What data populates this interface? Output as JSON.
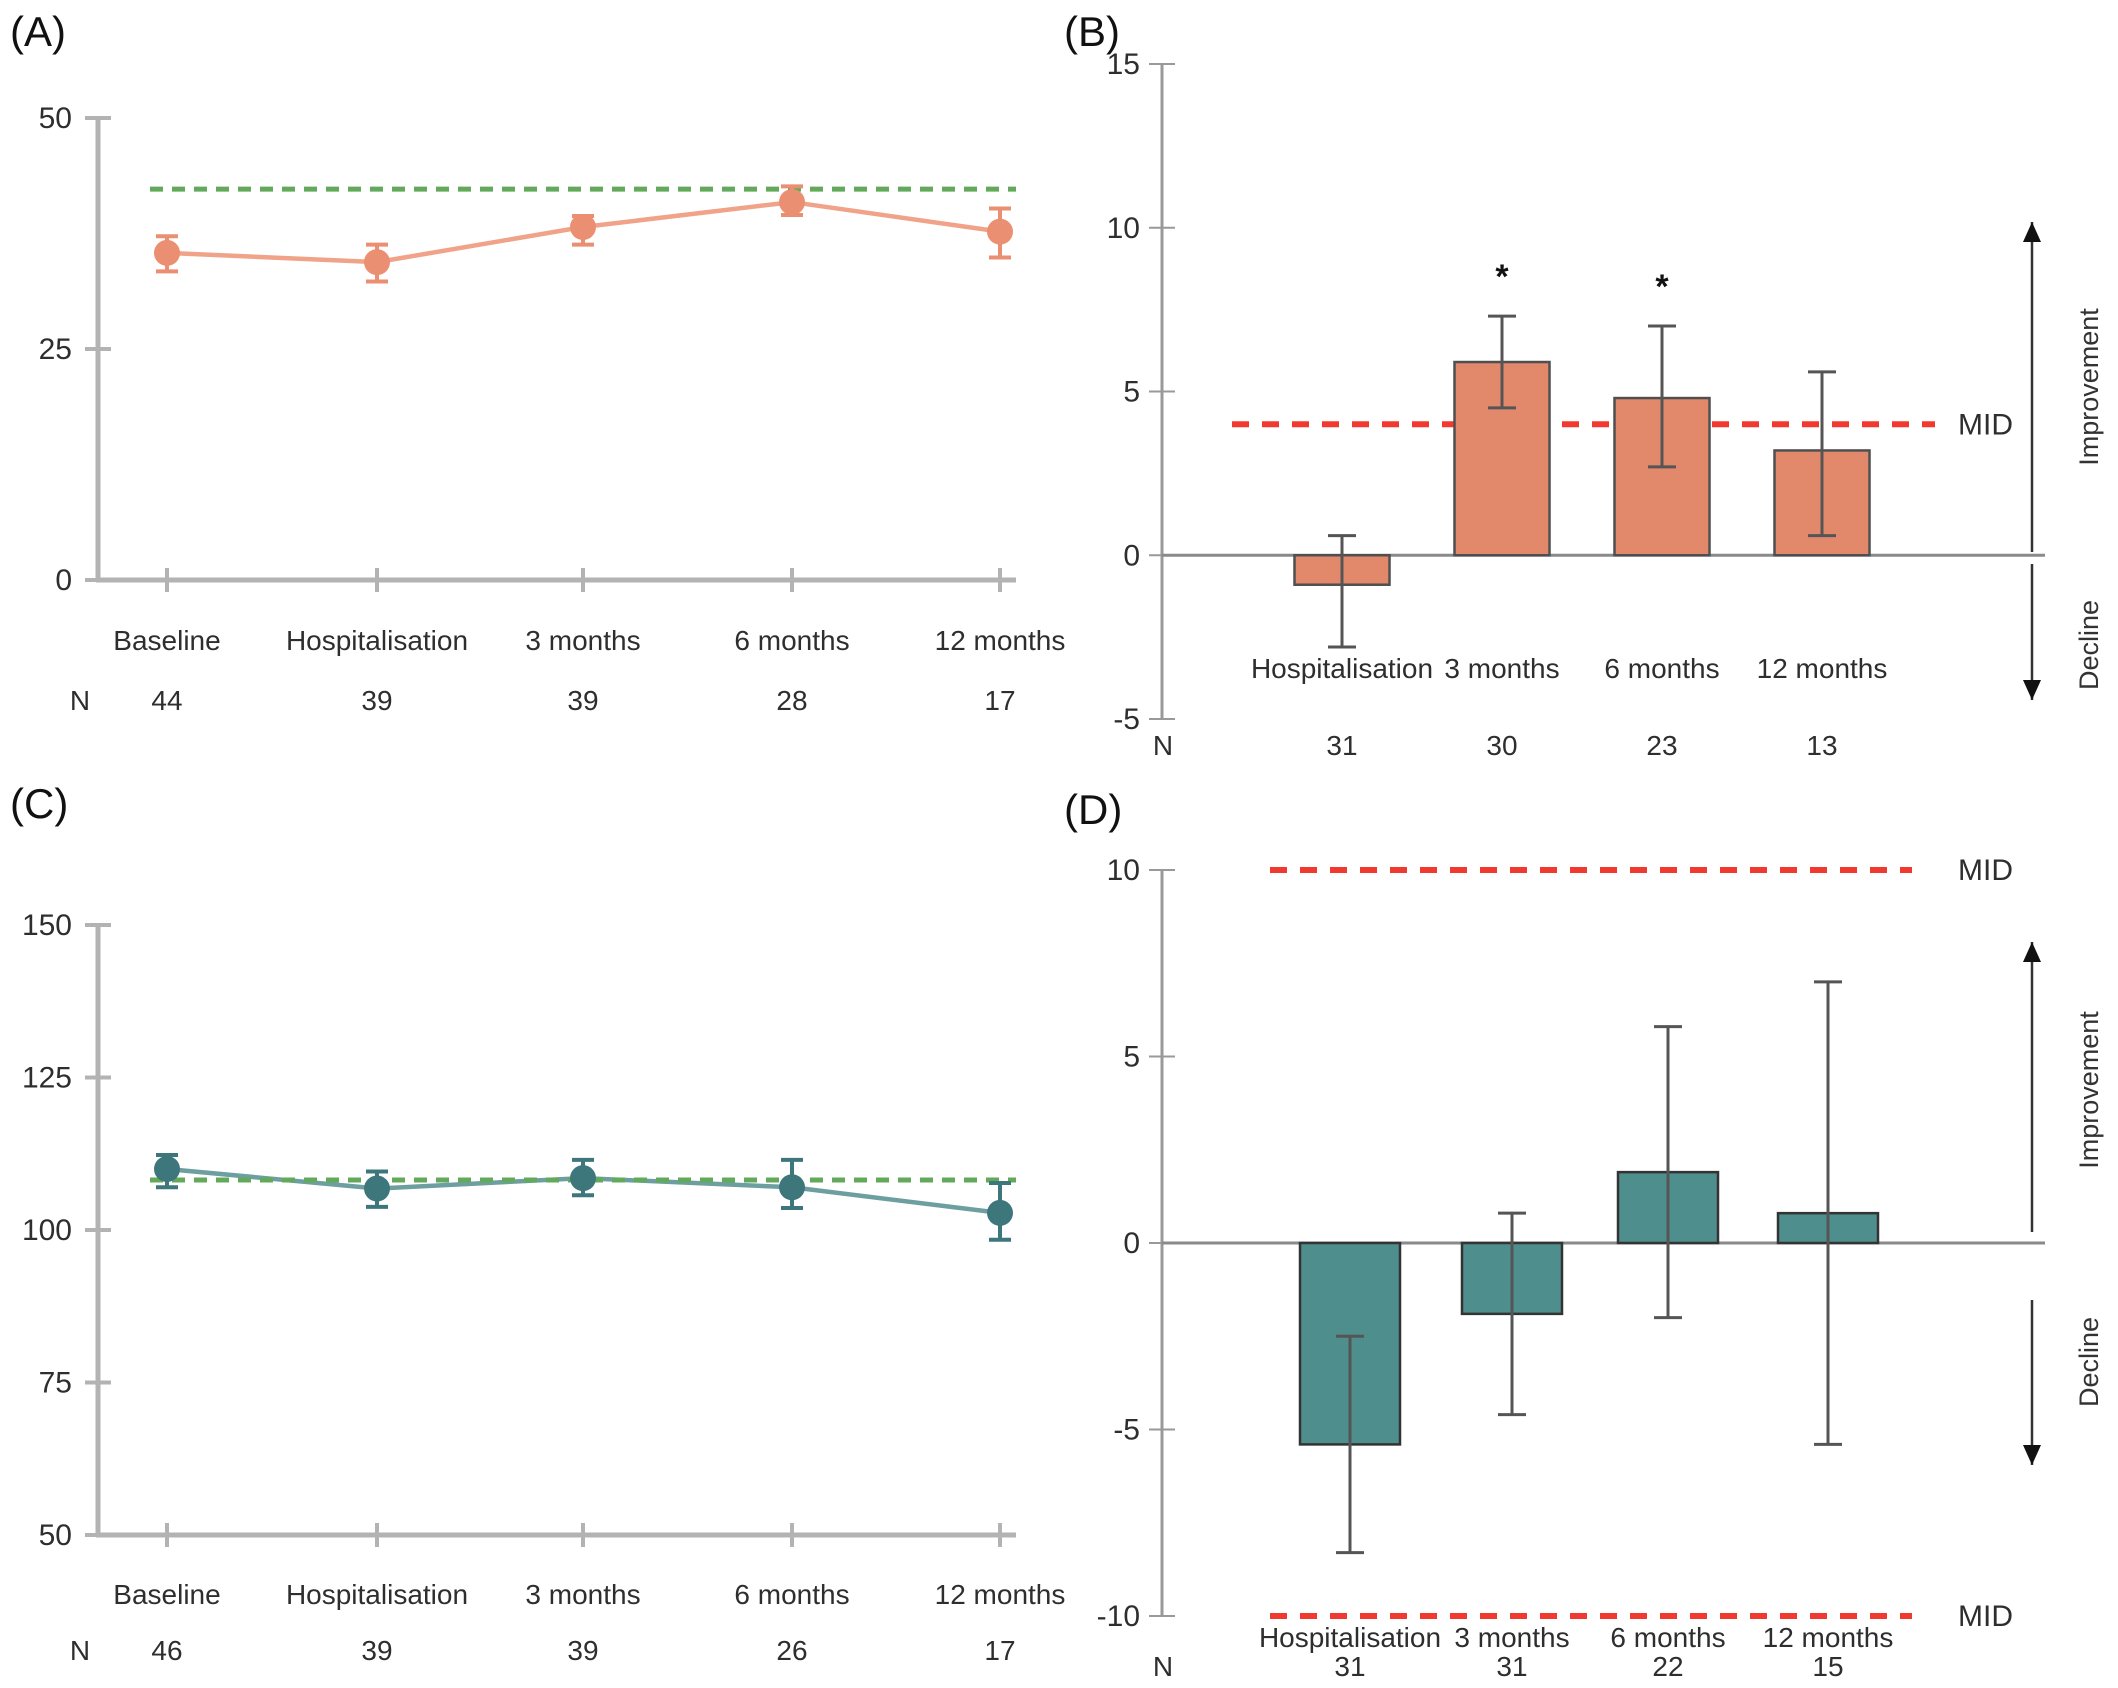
{
  "figure": {
    "background": "#ffffff",
    "n_row_label": "N",
    "mid_label": "MID",
    "improvement_label": "Improvement",
    "decline_label": "Decline",
    "significance_symbol": "*"
  },
  "colors": {
    "salmon_marker": "#EB8F73",
    "salmon_line": "#F0A389",
    "salmon_bar_fill": "#E2896C",
    "salmon_bar_stroke": "#4f4f4f",
    "teal_marker": "#3E777B",
    "teal_line": "#6D9EA0",
    "teal_bar_fill": "#4E8F8D",
    "teal_bar_stroke": "#333333",
    "green_reference": "#63A95B",
    "red_mid": "#F2392F",
    "axis_light": "#b3b3b3",
    "axis_dark": "#999999",
    "error_bar_dark": "#555555",
    "text": "#2e2e2e"
  },
  "chart_data": [
    {
      "id": "A",
      "panel_label": "(A)",
      "type": "line",
      "categories": [
        "Baseline",
        "Hospitalisation",
        "3 months",
        "6 months",
        "12 months"
      ],
      "n_values": [
        44,
        39,
        39,
        28,
        17
      ],
      "values": [
        35.4,
        34.4,
        38.2,
        40.9,
        37.7
      ],
      "error_low": [
        33.4,
        32.3,
        36.3,
        39.5,
        34.9
      ],
      "error_high": [
        37.2,
        36.3,
        39.4,
        42.6,
        40.2
      ],
      "ylim": [
        0,
        50
      ],
      "yticks": [
        0,
        25,
        50
      ],
      "reference_line": {
        "value": 42.3,
        "style": "dashed",
        "color_key": "green_reference"
      },
      "grid": false,
      "legend": null
    },
    {
      "id": "B",
      "panel_label": "(B)",
      "type": "bar",
      "categories": [
        "Hospitalisation",
        "3 months",
        "6 months",
        "12 months"
      ],
      "n_values": [
        31,
        30,
        23,
        13
      ],
      "values": [
        -0.9,
        5.9,
        4.8,
        3.2
      ],
      "error_low": [
        -2.8,
        4.5,
        2.7,
        0.6
      ],
      "error_high": [
        0.6,
        7.3,
        7.0,
        5.6
      ],
      "significance": [
        "",
        "*",
        "*",
        ""
      ],
      "ylim": [
        -5,
        15
      ],
      "yticks": [
        -5,
        0,
        5,
        10,
        15
      ],
      "mid_lines": [
        {
          "value": 4,
          "label": "MID"
        }
      ],
      "annotations": {
        "improvement": "Improvement",
        "decline": "Decline"
      },
      "grid": false,
      "legend": null
    },
    {
      "id": "C",
      "panel_label": "(C)",
      "type": "line",
      "categories": [
        "Baseline",
        "Hospitalisation",
        "3 months",
        "6 months",
        "12 months"
      ],
      "n_values": [
        46,
        39,
        39,
        26,
        17
      ],
      "values": [
        110.0,
        106.8,
        108.5,
        107.0,
        102.8
      ],
      "error_low": [
        107.0,
        103.8,
        105.7,
        103.6,
        98.4
      ],
      "error_high": [
        112.3,
        109.6,
        111.5,
        111.5,
        107.7
      ],
      "ylim": [
        50,
        150
      ],
      "yticks": [
        50,
        75,
        100,
        125,
        150
      ],
      "reference_line": {
        "value": 108.2,
        "style": "dashed",
        "color_key": "green_reference"
      },
      "grid": false,
      "legend": null
    },
    {
      "id": "D",
      "panel_label": "(D)",
      "type": "bar",
      "categories": [
        "Hospitalisation",
        "3 months",
        "6 months",
        "12 months"
      ],
      "n_values": [
        31,
        31,
        22,
        15
      ],
      "values": [
        -5.4,
        -1.9,
        1.9,
        0.8
      ],
      "error_low": [
        -8.3,
        -4.6,
        -2.0,
        -5.4
      ],
      "error_high": [
        -2.5,
        0.8,
        5.8,
        7.0
      ],
      "significance": [
        "",
        "",
        "",
        ""
      ],
      "ylim": [
        -10,
        10
      ],
      "yticks": [
        -10,
        -5,
        0,
        5,
        10
      ],
      "mid_lines": [
        {
          "value": 10,
          "label": "MID"
        },
        {
          "value": -10,
          "label": "MID"
        }
      ],
      "annotations": {
        "improvement": "Improvement",
        "decline": "Decline"
      },
      "grid": false,
      "legend": null
    }
  ]
}
